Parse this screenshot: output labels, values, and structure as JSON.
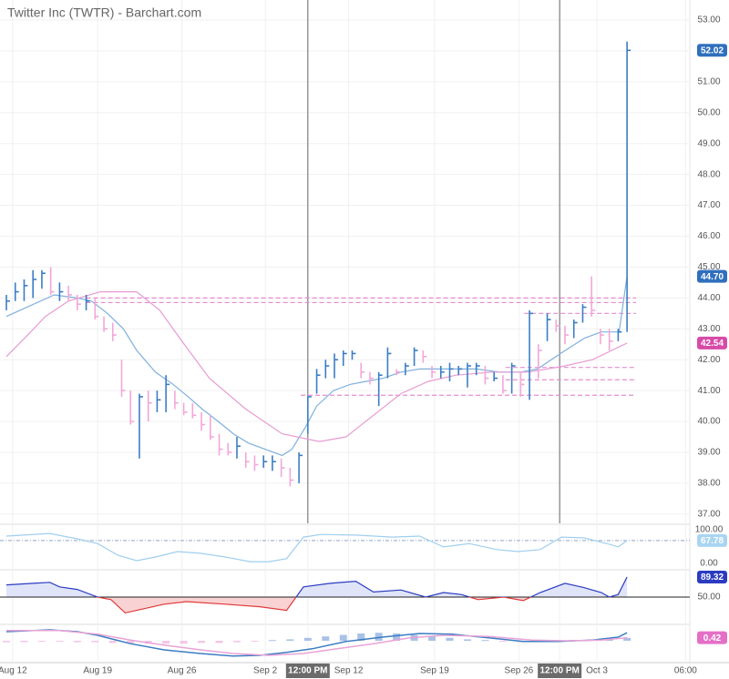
{
  "chart_data": [
    {
      "type": "ohlc",
      "title": "Twitter Inc (TWTR) - Barchart.com",
      "up_color": "#3b7dc4",
      "down_color": "#f2a7d8",
      "grid": true,
      "x": [
        0,
        1,
        2,
        3,
        4,
        5,
        6,
        7,
        8,
        9,
        10,
        11,
        12,
        13,
        14,
        15,
        16,
        17,
        18,
        19,
        20,
        21,
        22,
        23,
        24,
        25,
        26,
        27,
        28,
        29,
        30,
        31,
        32,
        33,
        34,
        35,
        36,
        37,
        38,
        39,
        40,
        41,
        42,
        43,
        44,
        45,
        46,
        47,
        48,
        49,
        50,
        51,
        52,
        53,
        54,
        55,
        56,
        57,
        58,
        59,
        60,
        61,
        62,
        63,
        64,
        65,
        66,
        67,
        68,
        69,
        70
      ],
      "high": [
        44.1,
        44.5,
        44.6,
        44.9,
        44.9,
        45.0,
        44.5,
        44.4,
        44.1,
        44.1,
        44.0,
        43.4,
        43.2,
        42.0,
        41.0,
        40.9,
        41.0,
        41.0,
        41.5,
        41.0,
        40.6,
        40.6,
        40.3,
        40.2,
        39.6,
        39.3,
        39.5,
        39.0,
        38.9,
        38.9,
        38.9,
        38.8,
        38.5,
        39.0,
        40.8,
        41.7,
        42.0,
        42.2,
        42.3,
        42.3,
        41.9,
        41.6,
        41.6,
        42.4,
        41.7,
        41.9,
        42.4,
        42.3,
        41.8,
        41.8,
        41.9,
        41.8,
        41.9,
        41.9,
        41.8,
        41.6,
        41.5,
        41.9,
        41.6,
        43.6,
        42.5,
        43.5,
        43.3,
        43.1,
        43.3,
        43.8,
        44.7,
        43.0,
        43.0,
        43.0,
        52.3
      ],
      "low": [
        43.6,
        43.9,
        43.9,
        44.0,
        44.3,
        44.1,
        43.9,
        43.9,
        43.6,
        43.6,
        43.3,
        42.9,
        42.6,
        40.8,
        39.9,
        38.8,
        40.0,
        40.3,
        40.3,
        40.4,
        40.2,
        40.1,
        39.7,
        39.4,
        38.9,
        38.9,
        38.8,
        38.5,
        38.4,
        38.5,
        38.4,
        38.2,
        37.9,
        38.0,
        39.6,
        40.9,
        41.4,
        41.4,
        41.8,
        42.0,
        41.4,
        41.2,
        40.5,
        41.4,
        41.5,
        41.5,
        41.8,
        41.9,
        41.4,
        41.4,
        41.3,
        41.5,
        41.1,
        41.5,
        41.2,
        41.3,
        40.9,
        40.9,
        40.8,
        40.7,
        41.4,
        42.6,
        42.9,
        42.5,
        42.7,
        43.2,
        43.4,
        42.5,
        42.3,
        42.6,
        42.9
      ],
      "close": [
        43.9,
        44.2,
        44.4,
        44.6,
        44.8,
        44.2,
        44.2,
        44.1,
        43.8,
        43.9,
        43.4,
        43.0,
        42.8,
        41.0,
        40.0,
        40.8,
        40.6,
        40.7,
        41.2,
        40.6,
        40.3,
        40.2,
        39.9,
        39.5,
        39.1,
        39.0,
        39.2,
        38.7,
        38.6,
        38.7,
        38.7,
        38.5,
        38.1,
        38.9,
        40.8,
        41.5,
        41.8,
        42.0,
        42.2,
        42.2,
        41.6,
        41.4,
        41.5,
        42.2,
        41.6,
        41.8,
        42.3,
        42.1,
        41.6,
        41.6,
        41.7,
        41.7,
        41.8,
        41.8,
        41.4,
        41.4,
        41.0,
        41.8,
        41.2,
        43.5,
        42.3,
        43.3,
        43.1,
        42.8,
        43.2,
        43.7,
        43.6,
        42.8,
        42.6,
        42.9,
        52.02
      ],
      "overlays": [
        {
          "color": "#7fb0dd",
          "x": [
            0,
            5.4,
            8.0,
            9.6,
            11.4,
            13.2,
            14.7,
            16.8,
            18.8,
            20.5,
            22.1,
            23.9,
            25.6,
            27.3,
            29.2,
            31.1,
            32.2,
            33.7,
            35.0,
            36.9,
            38.8,
            40.6,
            42.5,
            44.5,
            46.6,
            48.6,
            51.0,
            53.0,
            55.6,
            58.0,
            59.9,
            62.5,
            65.2,
            67.1,
            69.1,
            70
          ],
          "values": [
            43.4,
            44.1,
            44.0,
            43.9,
            43.5,
            43.0,
            42.3,
            41.6,
            41.2,
            40.8,
            40.4,
            40.0,
            39.6,
            39.3,
            39.1,
            38.9,
            39.1,
            39.8,
            40.5,
            41.0,
            41.2,
            41.3,
            41.4,
            41.6,
            41.7,
            41.7,
            41.7,
            41.7,
            41.6,
            41.6,
            41.7,
            42.2,
            42.7,
            42.9,
            42.9,
            44.7
          ]
        },
        {
          "color": "#e79bd2",
          "x": [
            0,
            2.4,
            4.4,
            7.0,
            10.6,
            14.7,
            17.3,
            19.8,
            22.9,
            27.0,
            31.1,
            35.3,
            38.3,
            41.4,
            44.5,
            47.6,
            50.7,
            54.8,
            58.9,
            63.0,
            66.1,
            70
          ],
          "values": [
            42.1,
            42.8,
            43.4,
            43.9,
            44.2,
            44.2,
            43.6,
            42.6,
            41.4,
            40.4,
            39.6,
            39.35,
            39.5,
            40.2,
            40.9,
            41.3,
            41.5,
            41.6,
            41.6,
            41.8,
            42.0,
            42.54
          ]
        }
      ],
      "levels": [
        {
          "value": 44.0,
          "from": 9.0
        },
        {
          "value": 43.85,
          "from": 9.0
        },
        {
          "value": 43.5,
          "from": 58.4
        },
        {
          "value": 41.75,
          "from": 56.3
        },
        {
          "value": 41.35,
          "from": 56.3
        },
        {
          "value": 40.85,
          "from": 33.2
        }
      ],
      "level_color": "#e58ccd",
      "session_breaks": [
        34.0,
        62.4
      ],
      "xlim": [
        -0.72,
        77.08
      ],
      "xticks": [
        {
          "value": 0.7,
          "label": "Aug 12"
        },
        {
          "value": 10.3,
          "label": "Aug 19"
        },
        {
          "value": 19.8,
          "label": "Aug 26"
        },
        {
          "value": 29.2,
          "label": "Sep 2"
        },
        {
          "value": 34.0,
          "label": "12:00 PM"
        },
        {
          "value": 38.6,
          "label": "Sep 12"
        },
        {
          "value": 48.3,
          "label": "Sep 19"
        },
        {
          "value": 57.8,
          "label": "Sep 26"
        },
        {
          "value": 62.4,
          "label": "12:00 PM"
        },
        {
          "value": 66.6,
          "label": "Oct 3"
        },
        {
          "value": 76.6,
          "label": "06:00"
        }
      ],
      "ylim": [
        36.7,
        53.65
      ],
      "yticks": [
        {
          "value": 37,
          "label": "37.00"
        },
        {
          "value": 38,
          "label": "38.00"
        },
        {
          "value": 39,
          "label": "39.00"
        },
        {
          "value": 40,
          "label": "40.00"
        },
        {
          "value": 41,
          "label": "41.00"
        },
        {
          "value": 42,
          "label": "42.00"
        },
        {
          "value": 43,
          "label": "43.00"
        },
        {
          "value": 44,
          "label": "44.00"
        },
        {
          "value": 45,
          "label": "45.00"
        },
        {
          "value": 46,
          "label": "46.00"
        },
        {
          "value": 47,
          "label": "47.00"
        },
        {
          "value": 48,
          "label": "48.00"
        },
        {
          "value": 49,
          "label": "49.00"
        },
        {
          "value": 50,
          "label": "50.00"
        },
        {
          "value": 51,
          "label": "51.00"
        },
        {
          "value": 52,
          "label": "52.00"
        },
        {
          "value": 53,
          "label": "53.00"
        }
      ],
      "markers": [
        {
          "value": 52.02,
          "label": "52.02",
          "color": "#2f6fbd"
        },
        {
          "value": 44.7,
          "label": "44.70",
          "color": "#2f6fbd"
        },
        {
          "value": 42.54,
          "label": "42.54",
          "color": "#d84aa8"
        }
      ]
    },
    {
      "type": "line",
      "color": "#9fcfee",
      "x": [
        0,
        4.9,
        8.0,
        10.3,
        12.6,
        14.7,
        16.8,
        19.3,
        21.9,
        24.7,
        27.5,
        29.6,
        31.6,
        33.5,
        35.5,
        39.4,
        43.5,
        46.6,
        49.3,
        52.2,
        55.3,
        57.7,
        60.2,
        62.6,
        65.1,
        68.0,
        69.0,
        70
      ],
      "values": [
        81,
        89,
        73,
        59,
        24,
        8,
        19,
        35,
        30,
        19,
        5,
        5,
        14,
        78,
        86,
        84,
        78,
        81,
        49,
        59,
        41,
        35,
        41,
        78,
        76,
        57,
        49,
        67.78
      ],
      "ylim": [
        0,
        100
      ],
      "yticks": [
        {
          "value": 100,
          "label": "100.00"
        },
        {
          "value": 0,
          "label": "0.00"
        }
      ],
      "markers": [
        {
          "value": 67.78,
          "label": "67.78",
          "color": "#a9d5f2"
        }
      ]
    },
    {
      "type": "oscillator",
      "color": "#2b3cc0",
      "below_color": "#e03a3a",
      "fill": "#dfe4f8",
      "below_fill": "#f9d3d3",
      "baseline": 50,
      "x": [
        0,
        3.0,
        4.9,
        6.0,
        8.0,
        10.3,
        11.8,
        13.4,
        14.7,
        17.8,
        20.3,
        24.7,
        28.6,
        31.6,
        33.5,
        36.5,
        39.4,
        41.4,
        44.5,
        47.3,
        49.3,
        51.3,
        53.2,
        56.1,
        58.3,
        60.2,
        63.0,
        65.1,
        67.1,
        68.0,
        69.0,
        70
      ],
      "values": [
        74,
        77,
        79,
        70,
        65,
        50,
        45,
        19,
        24,
        36,
        41,
        36,
        31,
        24,
        70,
        77,
        81,
        60,
        64,
        50,
        59,
        55,
        45,
        50,
        43,
        59,
        77,
        69,
        59,
        50,
        55,
        89.32
      ],
      "ylim": [
        0,
        100
      ],
      "yticks": [
        {
          "value": 50,
          "label": "50.00"
        }
      ],
      "markers": [
        {
          "value": 89.32,
          "label": "89.32",
          "color": "#2b3cc0"
        }
      ]
    },
    {
      "type": "macd",
      "series": [
        {
          "color": "#3b7dc4",
          "x": [
            0,
            4.9,
            8.0,
            10.3,
            14.0,
            17.8,
            21.9,
            25.6,
            28.6,
            31.6,
            34.5,
            38.3,
            42.4,
            46.6,
            50.3,
            54.4,
            58.3,
            62.2,
            66.1,
            69.0,
            70
          ],
          "values": [
            1.25,
            1.5,
            1.25,
            0.75,
            -0.4,
            -1.25,
            -1.75,
            -2.1,
            -2.0,
            -1.6,
            -1.1,
            -0.1,
            0.5,
            1.0,
            0.9,
            0.4,
            -0.1,
            -0.1,
            0.1,
            0.5,
            1.1
          ]
        },
        {
          "color": "#e9a3d6",
          "x": [
            0,
            6.0,
            10.3,
            14.0,
            17.8,
            21.9,
            25.6,
            29.6,
            33.5,
            37.3,
            41.4,
            45.5,
            49.3,
            54.4,
            59.3,
            63.2,
            67.1,
            70
          ],
          "values": [
            1.4,
            1.4,
            0.9,
            0.1,
            -0.6,
            -1.25,
            -1.75,
            -2.0,
            -1.75,
            -1.1,
            -0.4,
            0.4,
            0.75,
            0.6,
            0.1,
            0.0,
            0.1,
            0.42
          ]
        }
      ],
      "histogram": {
        "up_color": "#a9c1e6",
        "down_color": "#f5c6e6",
        "x": [
          0,
          2,
          4,
          6,
          8,
          10,
          12,
          14,
          16,
          18,
          20,
          22,
          24,
          26,
          28,
          30,
          32,
          34,
          36,
          38,
          40,
          42,
          44,
          46,
          48,
          50,
          52,
          54,
          56,
          58,
          60,
          62,
          64,
          66,
          68,
          70
        ],
        "values": [
          -0.2,
          -0.2,
          -0.1,
          -0.1,
          -0.2,
          -0.2,
          -0.3,
          -0.4,
          -0.4,
          -0.4,
          -0.4,
          -0.3,
          -0.3,
          -0.2,
          -0.1,
          0.1,
          0.2,
          0.4,
          0.6,
          0.8,
          1.0,
          1.1,
          1.0,
          0.8,
          0.6,
          0.4,
          0.2,
          0.1,
          -0.1,
          -0.2,
          -0.2,
          -0.1,
          0.1,
          0.2,
          0.3,
          0.4
        ]
      },
      "ylim": [
        -3,
        2.25
      ],
      "markers": [
        {
          "value": 0.42,
          "label": "0.42",
          "color": "#e46fc6"
        }
      ]
    }
  ]
}
